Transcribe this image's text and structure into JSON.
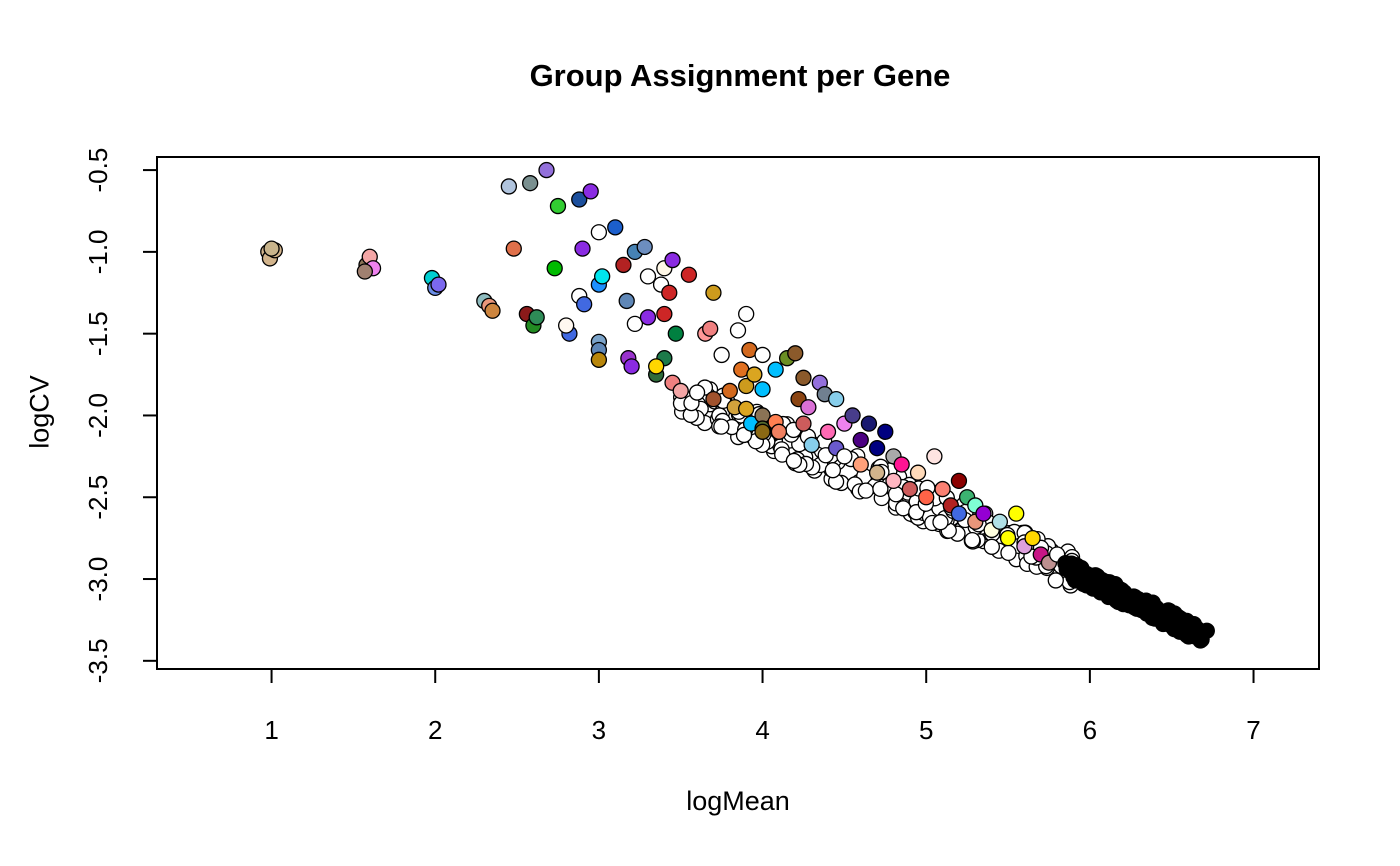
{
  "chart_data": {
    "type": "scatter",
    "title": "Group Assignment per Gene",
    "xlabel": "logMean",
    "ylabel": "logCV",
    "xlim": [
      0.3,
      7.4
    ],
    "ylim": [
      -3.55,
      -0.42
    ],
    "x_ticks": [
      1,
      2,
      3,
      4,
      5,
      6,
      7
    ],
    "y_ticks": [
      -0.5,
      -1.0,
      -1.5,
      -2.0,
      -2.5,
      -3.0,
      -3.5
    ],
    "x_tick_labels": [
      "1",
      "2",
      "3",
      "4",
      "5",
      "6",
      "7"
    ],
    "y_tick_labels": [
      "-0.5",
      "-1.0",
      "-1.5",
      "-2.0",
      "-2.5",
      "-3.0",
      "-3.5"
    ],
    "grid": false,
    "legend": "none",
    "marker_edge_color": "#000000",
    "background": "#ffffff",
    "points": [
      [
        0.98,
        -1.0,
        "#d2b48c"
      ],
      [
        0.99,
        -1.04,
        "#d2b48c"
      ],
      [
        1.02,
        -0.99,
        "#d2b48c"
      ],
      [
        1.0,
        -0.98,
        "#c8b48c"
      ],
      [
        1.58,
        -1.08,
        "#8b7355"
      ],
      [
        1.6,
        -1.03,
        "#f4a6a6"
      ],
      [
        1.62,
        -1.1,
        "#ee82ee"
      ],
      [
        1.57,
        -1.12,
        "#a08070"
      ],
      [
        1.98,
        -1.16,
        "#00ced1"
      ],
      [
        2.0,
        -1.22,
        "#6b8ee8"
      ],
      [
        2.02,
        -1.2,
        "#7b68ee"
      ],
      [
        2.3,
        -1.3,
        "#8fbcbf"
      ],
      [
        2.33,
        -1.33,
        "#e9967a"
      ],
      [
        2.35,
        -1.36,
        "#cd853f"
      ],
      [
        2.45,
        -0.6,
        "#b0c4de"
      ],
      [
        2.58,
        -0.58,
        "#7a9090"
      ],
      [
        2.68,
        -0.5,
        "#9370db"
      ],
      [
        2.48,
        -0.98,
        "#e0704a"
      ],
      [
        2.56,
        -1.38,
        "#8b1a1a"
      ],
      [
        2.6,
        -1.45,
        "#228b22"
      ],
      [
        2.62,
        -1.4,
        "#2e8b57"
      ],
      [
        2.75,
        -0.72,
        "#32cd32"
      ],
      [
        2.73,
        -1.1,
        "#00bb00"
      ],
      [
        2.82,
        -1.5,
        "#4169e1"
      ],
      [
        2.8,
        -1.45,
        "#fff8f0"
      ],
      [
        2.88,
        -0.68,
        "#1c4f9c"
      ],
      [
        2.95,
        -0.63,
        "#8a2be2"
      ],
      [
        2.9,
        -0.98,
        "#8a2be2"
      ],
      [
        2.88,
        -1.27,
        "#ffffff"
      ],
      [
        2.91,
        -1.32,
        "#4169e1"
      ],
      [
        3.0,
        -0.88,
        "#ffffff"
      ],
      [
        3.0,
        -1.2,
        "#1e90ff"
      ],
      [
        3.02,
        -1.15,
        "#00e5ee"
      ],
      [
        3.0,
        -1.55,
        "#7ba3c9"
      ],
      [
        3.0,
        -1.6,
        "#5f87b7"
      ],
      [
        3.0,
        -1.66,
        "#b8860b"
      ],
      [
        3.1,
        -0.85,
        "#1c5fcc"
      ],
      [
        3.15,
        -1.08,
        "#b22222"
      ],
      [
        3.22,
        -1.0,
        "#4682b4"
      ],
      [
        3.28,
        -0.97,
        "#6c8ebf"
      ],
      [
        3.3,
        -1.15,
        "#ffffff"
      ],
      [
        3.17,
        -1.3,
        "#5f87b7"
      ],
      [
        3.22,
        -1.44,
        "#ffffff"
      ],
      [
        3.3,
        -1.4,
        "#8a2be2"
      ],
      [
        3.18,
        -1.65,
        "#9932cc"
      ],
      [
        3.2,
        -1.7,
        "#8a2be2"
      ],
      [
        3.35,
        -1.75,
        "#2e6b3a"
      ],
      [
        3.4,
        -1.65,
        "#1d7a4a"
      ],
      [
        3.35,
        -1.7,
        "#ffd700"
      ],
      [
        3.38,
        -1.2,
        "#ffffff"
      ],
      [
        3.4,
        -1.1,
        "#fff8e7"
      ],
      [
        3.45,
        -1.05,
        "#8a2be2"
      ],
      [
        3.43,
        -1.25,
        "#cd2626"
      ],
      [
        3.4,
        -1.38,
        "#cd2626"
      ],
      [
        3.47,
        -1.5,
        "#008040"
      ],
      [
        3.45,
        -1.8,
        "#f08080"
      ],
      [
        3.5,
        -1.85,
        "#f4a6a6"
      ],
      [
        3.55,
        -1.14,
        "#cd2626"
      ],
      [
        3.6,
        -1.86,
        "#ffffff"
      ],
      [
        3.65,
        -1.5,
        "#ff9999"
      ],
      [
        3.7,
        -1.25,
        "#cd9b1d"
      ],
      [
        3.68,
        -1.47,
        "#f08080"
      ],
      [
        3.7,
        -1.9,
        "#a0522d"
      ],
      [
        3.75,
        -1.63,
        "#ffffff"
      ],
      [
        3.8,
        -1.85,
        "#d2691e"
      ],
      [
        3.83,
        -1.95,
        "#d2a23c"
      ],
      [
        3.85,
        -1.48,
        "#ffffff"
      ],
      [
        3.87,
        -1.72,
        "#e07020"
      ],
      [
        3.9,
        -1.38,
        "#ffffff"
      ],
      [
        3.92,
        -1.6,
        "#d2691e"
      ],
      [
        3.9,
        -1.82,
        "#cd9b1d"
      ],
      [
        3.95,
        -1.75,
        "#daa520"
      ],
      [
        3.9,
        -1.96,
        "#daa520"
      ],
      [
        3.93,
        -2.05,
        "#00bfff"
      ],
      [
        4.0,
        -1.63,
        "#ffffff"
      ],
      [
        4.0,
        -1.84,
        "#00bfff"
      ],
      [
        4.0,
        -2.0,
        "#8b7355"
      ],
      [
        4.0,
        -2.08,
        "#556b2f"
      ],
      [
        4.0,
        -2.1,
        "#8b6914"
      ],
      [
        4.08,
        -1.72,
        "#00bfff"
      ],
      [
        4.08,
        -2.04,
        "#ff7f50"
      ],
      [
        4.1,
        -2.1,
        "#f08060"
      ],
      [
        4.15,
        -1.65,
        "#6b8e23"
      ],
      [
        4.2,
        -1.62,
        "#8b5a2b"
      ],
      [
        4.22,
        -1.9,
        "#8b4513"
      ],
      [
        4.25,
        -1.77,
        "#8b5a2b"
      ],
      [
        4.25,
        -2.05,
        "#cd5c5c"
      ],
      [
        4.28,
        -1.95,
        "#da70d6"
      ],
      [
        4.3,
        -2.18,
        "#87ceeb"
      ],
      [
        4.35,
        -1.8,
        "#9370db"
      ],
      [
        4.38,
        -1.87,
        "#708090"
      ],
      [
        4.4,
        -2.1,
        "#ff69b4"
      ],
      [
        4.45,
        -1.9,
        "#87ceeb"
      ],
      [
        4.45,
        -2.2,
        "#6a5acd"
      ],
      [
        4.5,
        -2.05,
        "#ee82ee"
      ],
      [
        4.5,
        -2.25,
        "#ffffff"
      ],
      [
        4.55,
        -2.0,
        "#483d8b"
      ],
      [
        4.6,
        -2.15,
        "#4b0082"
      ],
      [
        4.6,
        -2.3,
        "#ffa07a"
      ],
      [
        4.65,
        -2.05,
        "#191970"
      ],
      [
        4.7,
        -2.2,
        "#000080"
      ],
      [
        4.7,
        -2.35,
        "#d2b48c"
      ],
      [
        4.75,
        -2.1,
        "#000080"
      ],
      [
        4.8,
        -2.25,
        "#a9a9a9"
      ],
      [
        4.8,
        -2.4,
        "#ffb6c1"
      ],
      [
        4.85,
        -2.3,
        "#ff1493"
      ],
      [
        4.9,
        -2.45,
        "#cd5c5c"
      ],
      [
        4.95,
        -2.35,
        "#ffdab9"
      ],
      [
        5.0,
        -2.5,
        "#ff6347"
      ],
      [
        5.05,
        -2.25,
        "#ffe4e1"
      ],
      [
        5.1,
        -2.45,
        "#fa8072"
      ],
      [
        5.15,
        -2.55,
        "#b22222"
      ],
      [
        5.2,
        -2.4,
        "#8b0000"
      ],
      [
        5.2,
        -2.6,
        "#4169e1"
      ],
      [
        5.25,
        -2.5,
        "#3cb371"
      ],
      [
        5.3,
        -2.65,
        "#e9967a"
      ],
      [
        5.3,
        -2.55,
        "#7fffd4"
      ],
      [
        5.35,
        -2.6,
        "#9400d3"
      ],
      [
        5.4,
        -2.7,
        "#ffffe0"
      ],
      [
        5.45,
        -2.65,
        "#b0e0e6"
      ],
      [
        5.5,
        -2.75,
        "#ffff00"
      ],
      [
        5.55,
        -2.6,
        "#ffff00"
      ],
      [
        5.6,
        -2.8,
        "#dda0dd"
      ],
      [
        5.65,
        -2.75,
        "#ffd700"
      ],
      [
        5.7,
        -2.85,
        "#c71585"
      ],
      [
        5.75,
        -2.9,
        "#bc8f8f"
      ],
      [
        5.8,
        -2.85,
        "#ffffff"
      ]
    ],
    "dense_band": {
      "fill": "#ffffff",
      "x_range": [
        3.5,
        5.9
      ],
      "center_line": [
        [
          3.5,
          -1.87
        ],
        [
          5.9,
          -2.95
        ]
      ],
      "spread": 0.11,
      "count": 260
    },
    "black_band": {
      "fill": "#000000",
      "x_range": [
        5.85,
        6.72
      ],
      "center_line": [
        [
          5.85,
          -2.93
        ],
        [
          6.72,
          -3.36
        ]
      ],
      "spread": 0.05,
      "count": 220
    }
  }
}
